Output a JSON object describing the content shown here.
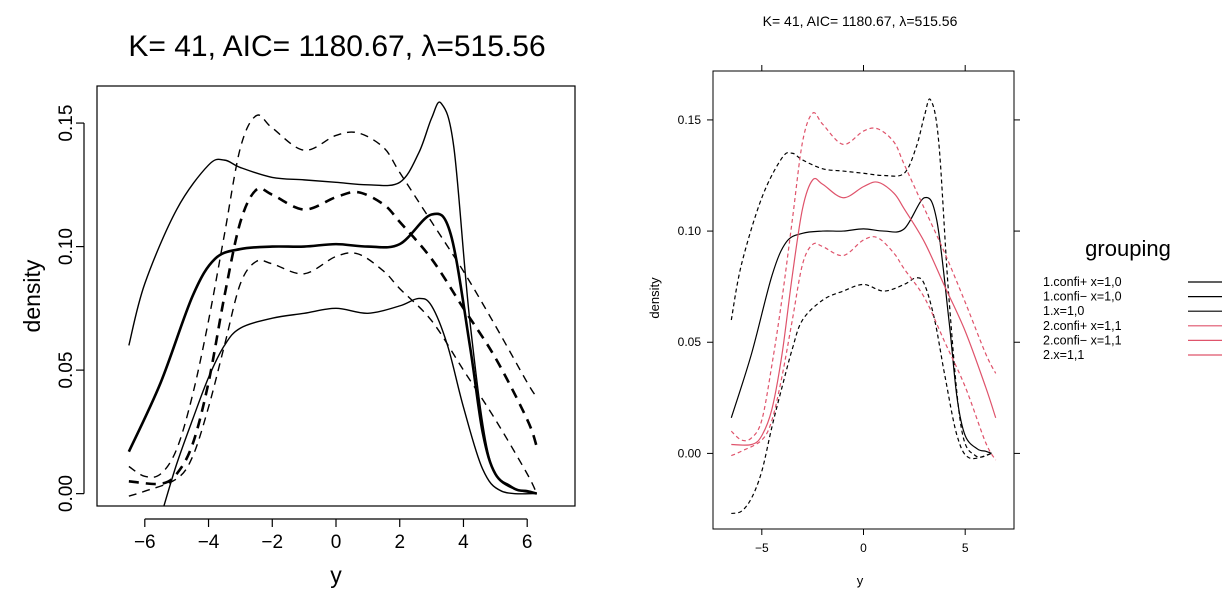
{
  "chart_data": [
    {
      "type": "line",
      "title": "K= 41, AIC= 1180.67, λ=515.56",
      "xlabel": "y",
      "ylabel": "density",
      "xlim": [
        -7.5,
        7.5
      ],
      "ylim": [
        -0.005,
        0.165
      ],
      "xticks": [
        -6,
        -4,
        -2,
        0,
        2,
        4,
        6
      ],
      "yticks": [
        0.0,
        0.05,
        0.1,
        0.15
      ],
      "xtick_labels": [
        "−6",
        "−4",
        "−2",
        "0",
        "2",
        "4",
        "6"
      ],
      "ytick_labels": [
        "0.00",
        "0.05",
        "0.10",
        "0.15"
      ],
      "grid": false,
      "series": [
        {
          "group": 1,
          "role": "estimate",
          "style": "solid",
          "width": 2.6,
          "color": "#000000",
          "x": [
            -6.5,
            -5.5,
            -4.5,
            -3.8,
            -3,
            -2,
            -1,
            0,
            1,
            2,
            3,
            3.6,
            4.2,
            4.6,
            5,
            5.6,
            6,
            6.3
          ],
          "y": [
            0.017,
            0.045,
            0.08,
            0.095,
            0.099,
            0.1,
            0.1,
            0.101,
            0.1,
            0.101,
            0.113,
            0.105,
            0.06,
            0.025,
            0.008,
            0.002,
            0.001,
            0.0
          ]
        },
        {
          "group": 1,
          "role": "upper",
          "style": "solid",
          "width": 1.4,
          "color": "#000000",
          "x": [
            -6.5,
            -6,
            -5,
            -4,
            -3.5,
            -3,
            -2,
            -1,
            0,
            1,
            2,
            2.6,
            3,
            3.3,
            3.7,
            4.2,
            4.8,
            5.5,
            6.3
          ],
          "y": [
            0.06,
            0.085,
            0.115,
            0.133,
            0.135,
            0.132,
            0.128,
            0.127,
            0.126,
            0.125,
            0.126,
            0.138,
            0.152,
            0.158,
            0.14,
            0.07,
            0.015,
            0.003,
            0.0
          ]
        },
        {
          "group": 1,
          "role": "lower",
          "style": "solid",
          "width": 1.4,
          "color": "#000000",
          "x": [
            -5.4,
            -5,
            -4.5,
            -4,
            -3.5,
            -3,
            -2,
            -1,
            0,
            1,
            2,
            2.6,
            3,
            3.5,
            4,
            4.6,
            5.2,
            6.3
          ],
          "y": [
            -0.005,
            0.012,
            0.03,
            0.047,
            0.06,
            0.067,
            0.071,
            0.073,
            0.075,
            0.073,
            0.076,
            0.079,
            0.076,
            0.06,
            0.035,
            0.01,
            0.001,
            0.0
          ]
        },
        {
          "group": 2,
          "role": "estimate",
          "style": "dashed",
          "width": 2.6,
          "color": "#000000",
          "x": [
            -6.5,
            -5.5,
            -5,
            -4.5,
            -4,
            -3.5,
            -3,
            -2.5,
            -2,
            -1,
            0,
            0.7,
            1.5,
            2,
            3,
            4,
            5,
            6,
            6.3
          ],
          "y": [
            0.005,
            0.004,
            0.008,
            0.02,
            0.045,
            0.08,
            0.11,
            0.123,
            0.121,
            0.115,
            0.12,
            0.122,
            0.117,
            0.11,
            0.095,
            0.075,
            0.055,
            0.03,
            0.019
          ]
        },
        {
          "group": 2,
          "role": "upper",
          "style": "dashed",
          "width": 1.4,
          "color": "#000000",
          "x": [
            -6.5,
            -6,
            -5.5,
            -5,
            -4.5,
            -4,
            -3.5,
            -3,
            -2.5,
            -2,
            -1,
            0,
            0.7,
            1.5,
            2,
            3,
            4,
            5,
            6,
            6.3
          ],
          "y": [
            0.011,
            0.007,
            0.008,
            0.018,
            0.04,
            0.07,
            0.105,
            0.14,
            0.153,
            0.148,
            0.139,
            0.145,
            0.146,
            0.14,
            0.13,
            0.11,
            0.09,
            0.068,
            0.045,
            0.039
          ]
        },
        {
          "group": 2,
          "role": "lower",
          "style": "dashed",
          "width": 1.4,
          "color": "#000000",
          "x": [
            -6.5,
            -6,
            -5,
            -4.5,
            -4,
            -3.5,
            -3,
            -2.5,
            -2,
            -1,
            0,
            0.7,
            1.5,
            2,
            3,
            4,
            5,
            6,
            6.3
          ],
          "y": [
            -0.001,
            0.001,
            0.006,
            0.015,
            0.035,
            0.06,
            0.085,
            0.094,
            0.093,
            0.089,
            0.096,
            0.097,
            0.09,
            0.083,
            0.07,
            0.05,
            0.03,
            0.008,
            0.0
          ]
        }
      ]
    },
    {
      "type": "line",
      "title": "K= 41, AIC= 1180.67, λ=515.56",
      "xlabel": "y",
      "ylabel": "density",
      "xlim": [
        -7.4,
        7.4
      ],
      "ylim": [
        -0.034,
        0.172
      ],
      "xticks": [
        -5,
        0,
        5
      ],
      "yticks": [
        0.0,
        0.05,
        0.1,
        0.15
      ],
      "xtick_labels": [
        "−5",
        "0",
        "5"
      ],
      "ytick_labels": [
        "0.00",
        "0.05",
        "0.10",
        "0.15"
      ],
      "grid": false,
      "legend": {
        "title": "grouping",
        "placement": "right",
        "entries": [
          {
            "label": "1.confi+ x=1,0",
            "color": "#000000"
          },
          {
            "label": "1.confi− x=1,0",
            "color": "#000000"
          },
          {
            "label": "1.x=1,0",
            "color": "#000000"
          },
          {
            "label": "2.confi+ x=1,1",
            "color": "#DF536B"
          },
          {
            "label": "2.confi− x=1,1",
            "color": "#DF536B"
          },
          {
            "label": "2.x=1,1",
            "color": "#DF536B"
          }
        ]
      },
      "series": [
        {
          "name": "1.confi+ x=1,0",
          "style": "dashed",
          "color": "#000000",
          "x": [
            -6.5,
            -6,
            -5,
            -4,
            -3.5,
            -3,
            -2,
            -1,
            0,
            1,
            2,
            2.6,
            3,
            3.3,
            3.7,
            4.2,
            4.8,
            5.5,
            6.3
          ],
          "y": [
            0.06,
            0.085,
            0.115,
            0.133,
            0.135,
            0.132,
            0.128,
            0.127,
            0.126,
            0.125,
            0.126,
            0.138,
            0.152,
            0.159,
            0.14,
            0.07,
            0.012,
            -0.001,
            0.0
          ]
        },
        {
          "name": "1.confi− x=1,0",
          "style": "dashed",
          "color": "#000000",
          "x": [
            -6.5,
            -6,
            -5.5,
            -5,
            -4.5,
            -4,
            -3.5,
            -3,
            -2,
            -1,
            0,
            1,
            2,
            2.6,
            3,
            3.5,
            4,
            4.6,
            5.2,
            6.3
          ],
          "y": [
            -0.027,
            -0.026,
            -0.02,
            -0.008,
            0.012,
            0.03,
            0.047,
            0.06,
            0.069,
            0.073,
            0.076,
            0.073,
            0.076,
            0.079,
            0.076,
            0.06,
            0.035,
            0.008,
            -0.002,
            0.0
          ]
        },
        {
          "name": "1.x=1,0",
          "style": "solid",
          "color": "#000000",
          "x": [
            -6.5,
            -5.5,
            -4.5,
            -3.8,
            -3,
            -2,
            -1,
            0,
            1,
            2,
            3,
            3.6,
            4.2,
            4.6,
            5,
            5.6,
            6,
            6.3
          ],
          "y": [
            0.016,
            0.045,
            0.08,
            0.095,
            0.099,
            0.1,
            0.1,
            0.101,
            0.1,
            0.101,
            0.115,
            0.105,
            0.06,
            0.025,
            0.008,
            0.002,
            0.001,
            0.0
          ]
        },
        {
          "name": "2.confi+ x=1,1",
          "style": "dashed",
          "color": "#DF536B",
          "x": [
            -6.5,
            -6,
            -5.5,
            -5,
            -4.5,
            -4,
            -3.5,
            -3,
            -2.5,
            -2,
            -1,
            0,
            0.7,
            1.5,
            2,
            3,
            4,
            5,
            6,
            6.5
          ],
          "y": [
            0.01,
            0.006,
            0.007,
            0.015,
            0.04,
            0.07,
            0.105,
            0.14,
            0.153,
            0.148,
            0.139,
            0.145,
            0.146,
            0.14,
            0.13,
            0.11,
            0.09,
            0.068,
            0.045,
            0.036
          ]
        },
        {
          "name": "2.confi− x=1,1",
          "style": "dashed",
          "color": "#DF536B",
          "x": [
            -6.5,
            -6,
            -5,
            -4.5,
            -4,
            -3.5,
            -3,
            -2.5,
            -2,
            -1,
            0,
            0.7,
            1.5,
            2,
            3,
            4,
            5,
            6,
            6.5
          ],
          "y": [
            -0.001,
            0.001,
            0.006,
            0.015,
            0.035,
            0.06,
            0.085,
            0.094,
            0.093,
            0.089,
            0.096,
            0.097,
            0.09,
            0.083,
            0.07,
            0.05,
            0.03,
            0.005,
            -0.003
          ]
        },
        {
          "name": "2.x=1,1",
          "style": "solid",
          "color": "#DF536B",
          "x": [
            -6.5,
            -5.5,
            -5,
            -4.5,
            -4,
            -3.5,
            -3,
            -2.5,
            -2,
            -1,
            0,
            0.7,
            1.5,
            2,
            3,
            4,
            5,
            6,
            6.5
          ],
          "y": [
            0.004,
            0.004,
            0.008,
            0.02,
            0.045,
            0.08,
            0.11,
            0.123,
            0.121,
            0.115,
            0.12,
            0.122,
            0.117,
            0.11,
            0.095,
            0.075,
            0.055,
            0.03,
            0.016
          ]
        }
      ]
    }
  ]
}
